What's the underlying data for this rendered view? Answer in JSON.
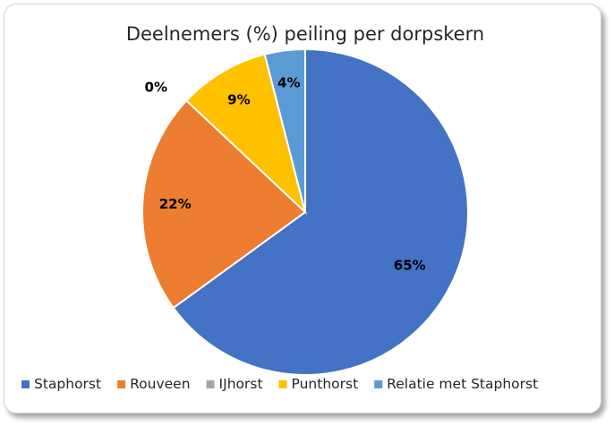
{
  "chart_data": {
    "type": "pie",
    "title": "Deelnemers (%) peiling per dorpskern",
    "categories": [
      "Staphorst",
      "Rouveen",
      "IJhorst",
      "Punthorst",
      "Relatie met Staphorst"
    ],
    "values": [
      65,
      22,
      0,
      9,
      4
    ],
    "data_labels": [
      "65%",
      "22%",
      "0%",
      "9%",
      "4%"
    ],
    "colors": [
      "#4472C4",
      "#ED7D31",
      "#A5A5A5",
      "#FFC000",
      "#5B9BD5"
    ],
    "start": "12 o'clock",
    "direction": "clockwise",
    "legend_position": "bottom"
  }
}
